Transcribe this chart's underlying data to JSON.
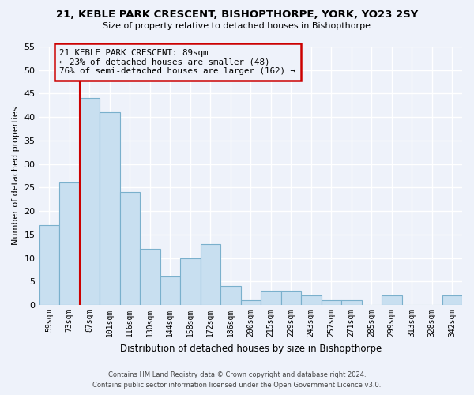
{
  "title1": "21, KEBLE PARK CRESCENT, BISHOPTHORPE, YORK, YO23 2SY",
  "title2": "Size of property relative to detached houses in Bishopthorpe",
  "xlabel": "Distribution of detached houses by size in Bishopthorpe",
  "ylabel": "Number of detached properties",
  "categories": [
    "59sqm",
    "73sqm",
    "87sqm",
    "101sqm",
    "116sqm",
    "130sqm",
    "144sqm",
    "158sqm",
    "172sqm",
    "186sqm",
    "200sqm",
    "215sqm",
    "229sqm",
    "243sqm",
    "257sqm",
    "271sqm",
    "285sqm",
    "299sqm",
    "313sqm",
    "328sqm",
    "342sqm"
  ],
  "values": [
    17,
    26,
    44,
    41,
    24,
    12,
    6,
    10,
    13,
    4,
    1,
    3,
    3,
    2,
    1,
    1,
    0,
    2,
    0,
    0,
    2
  ],
  "bar_color": "#c8dff0",
  "bar_edge_color": "#7ab0cc",
  "highlight_bar_index": 2,
  "highlight_line_color": "#cc0000",
  "ylim": [
    0,
    55
  ],
  "yticks": [
    0,
    5,
    10,
    15,
    20,
    25,
    30,
    35,
    40,
    45,
    50,
    55
  ],
  "annotation_title": "21 KEBLE PARK CRESCENT: 89sqm",
  "annotation_line1": "← 23% of detached houses are smaller (48)",
  "annotation_line2": "76% of semi-detached houses are larger (162) →",
  "annotation_box_edge": "#cc0000",
  "footer1": "Contains HM Land Registry data © Crown copyright and database right 2024.",
  "footer2": "Contains public sector information licensed under the Open Government Licence v3.0.",
  "background_color": "#eef2fa",
  "grid_color": "#ffffff",
  "title1_fontsize": 9.5,
  "title2_fontsize": 8.0,
  "annotation_fontsize": 7.8
}
